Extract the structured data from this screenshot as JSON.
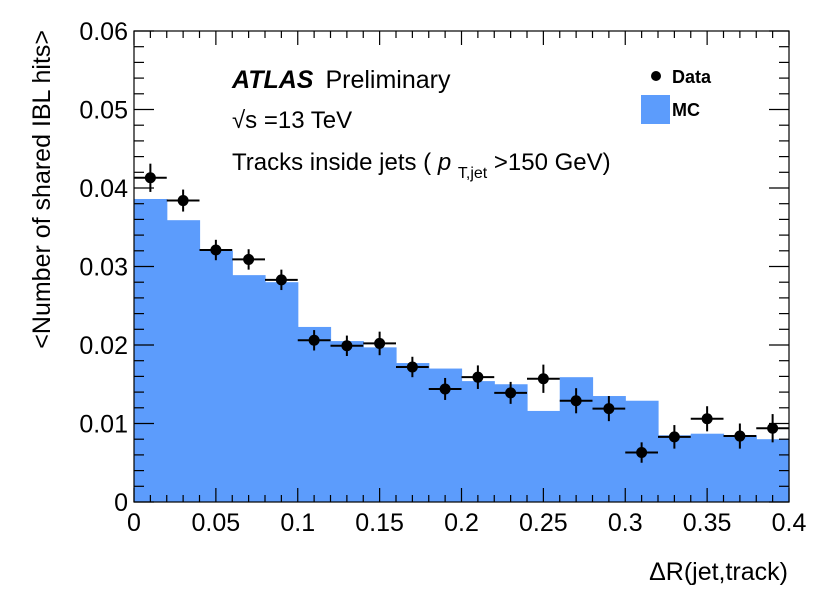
{
  "chart_data": {
    "type": "bar",
    "title": "",
    "xlabel": "ΔR(jet,track)",
    "ylabel": "<Number of shared IBL hits>",
    "xlim": [
      0,
      0.4
    ],
    "ylim": [
      0,
      0.06
    ],
    "x_ticks": [
      0,
      0.05,
      0.1,
      0.15,
      0.2,
      0.25,
      0.3,
      0.35,
      0.4
    ],
    "x_tick_labels": [
      "0",
      "0.05",
      "0.1",
      "0.15",
      "0.2",
      "0.25",
      "0.3",
      "0.35",
      "0.4"
    ],
    "y_ticks": [
      0,
      0.01,
      0.02,
      0.03,
      0.04,
      0.05,
      0.06
    ],
    "y_tick_labels": [
      "0",
      "0.01",
      "0.02",
      "0.03",
      "0.04",
      "0.05",
      "0.06"
    ],
    "bin_edges": [
      0,
      0.02,
      0.04,
      0.06,
      0.08,
      0.1,
      0.12,
      0.14,
      0.16,
      0.18,
      0.2,
      0.22,
      0.24,
      0.26,
      0.28,
      0.3,
      0.32,
      0.34,
      0.36,
      0.38,
      0.4
    ],
    "series": [
      {
        "name": "MC",
        "kind": "histogram",
        "color": "#5c9cfc",
        "values": [
          0.0386,
          0.0359,
          0.032,
          0.0289,
          0.028,
          0.0223,
          0.0205,
          0.0197,
          0.0177,
          0.017,
          0.0154,
          0.015,
          0.0116,
          0.0159,
          0.0135,
          0.0129,
          0.0085,
          0.0087,
          0.0085,
          0.008
        ]
      },
      {
        "name": "Data",
        "kind": "points",
        "color": "#000000",
        "x": [
          0.01,
          0.03,
          0.05,
          0.07,
          0.09,
          0.11,
          0.13,
          0.15,
          0.17,
          0.19,
          0.21,
          0.23,
          0.25,
          0.27,
          0.29,
          0.31,
          0.33,
          0.35,
          0.37,
          0.39
        ],
        "values": [
          0.0413,
          0.0384,
          0.0321,
          0.0309,
          0.0283,
          0.0206,
          0.0199,
          0.0202,
          0.0172,
          0.0144,
          0.0159,
          0.0139,
          0.0157,
          0.0129,
          0.0119,
          0.0063,
          0.0083,
          0.0106,
          0.0084,
          0.0094
        ],
        "errors": [
          0.0018,
          0.0014,
          0.0013,
          0.0013,
          0.0013,
          0.0013,
          0.0013,
          0.0015,
          0.0013,
          0.0014,
          0.0015,
          0.0014,
          0.0018,
          0.0016,
          0.0016,
          0.0013,
          0.0015,
          0.0016,
          0.0016,
          0.0018
        ]
      }
    ],
    "legend": {
      "placement": "top-right",
      "entries": [
        {
          "label": "Data",
          "marker": "point"
        },
        {
          "label": "MC",
          "marker": "box"
        }
      ]
    },
    "annotations": {
      "atlas": "ATLAS",
      "preliminary": "Preliminary",
      "energy_sqrt": "√s",
      "energy_value": "=13 TeV",
      "tracks_prefix": "Tracks inside jets (",
      "tracks_p": "p",
      "tracks_sub": "T,jet",
      "tracks_suffix": ">150 GeV)"
    }
  }
}
